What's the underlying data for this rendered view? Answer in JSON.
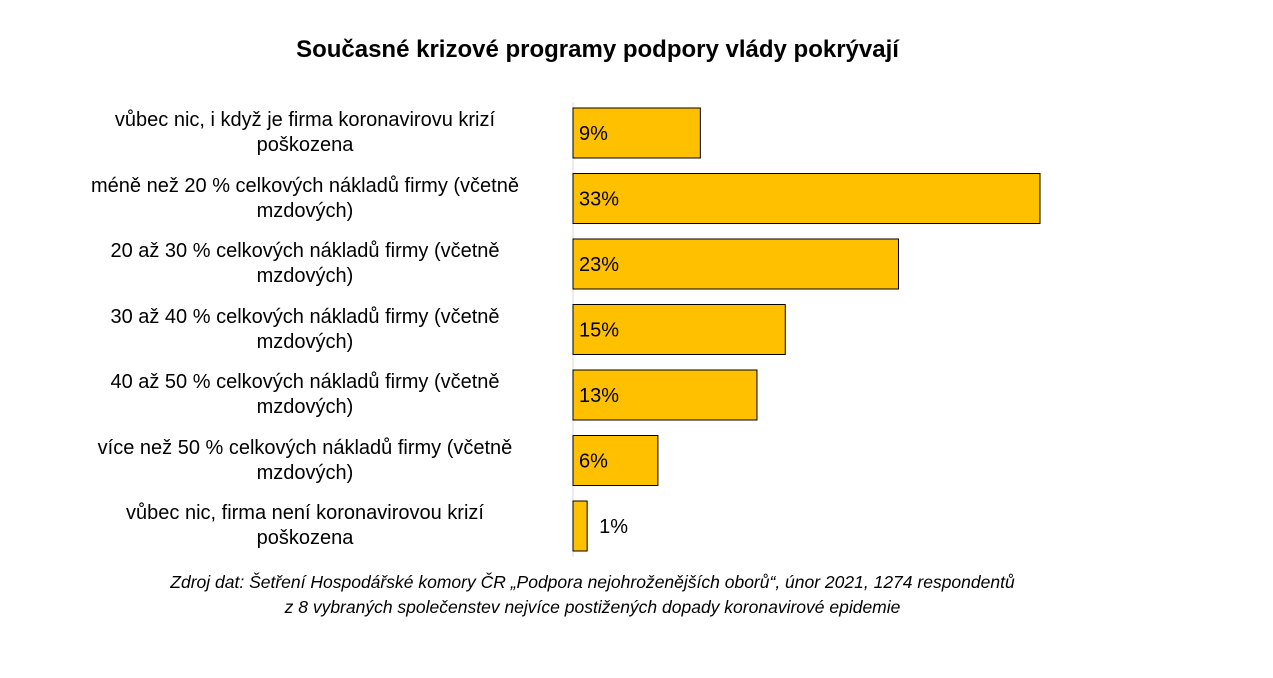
{
  "chart_data": {
    "type": "bar",
    "orientation": "horizontal",
    "title": "Současné krizové programy podpory vlády pokrývají",
    "categories": [
      "vůbec nic, i když je firma koronavirovu krizí poškozena",
      "méně než 20 % celkových nákladů firmy (včetně mzdových)",
      "20 až 30 % celkových nákladů firmy (včetně mzdových)",
      "30 až 40 % celkových nákladů firmy (včetně mzdových)",
      "40 až 50 % celkových nákladů firmy (včetně mzdových)",
      "více než 50 % celkových nákladů firmy (včetně mzdových)",
      "vůbec nic, firma není koronavirovou krizí poškozena"
    ],
    "category_lines": [
      [
        "vůbec nic, i když je firma koronavirovu krizí",
        "poškozena"
      ],
      [
        "méně než 20 % celkových nákladů firmy (včetně",
        "mzdových)"
      ],
      [
        "20 až 30 % celkových nákladů firmy (včetně",
        "mzdových)"
      ],
      [
        "30 až 40 % celkových nákladů firmy (včetně",
        "mzdových)"
      ],
      [
        "40 až 50 % celkových nákladů firmy (včetně",
        "mzdových)"
      ],
      [
        "více než 50 % celkových nákladů firmy (včetně",
        "mzdových)"
      ],
      [
        "vůbec nic, firma není koronavirovou krizí",
        "poškozena"
      ]
    ],
    "values": [
      9,
      33,
      23,
      15,
      13,
      6,
      1
    ],
    "value_labels": [
      "9%",
      "33%",
      "23%",
      "15%",
      "13%",
      "6%",
      "1%"
    ],
    "xlim": [
      0,
      35
    ],
    "bar_color": "#FFC000",
    "grid": false,
    "legend": "none"
  },
  "source": {
    "line1": "Zdroj dat: Šetření Hospodářské komory ČR „Podpora nejohroženějších oborů“, únor 2021, 1274 respondentů",
    "line2": "z 8 vybraných společenstev nejvíce postižených dopady koronavirové epidemie"
  }
}
